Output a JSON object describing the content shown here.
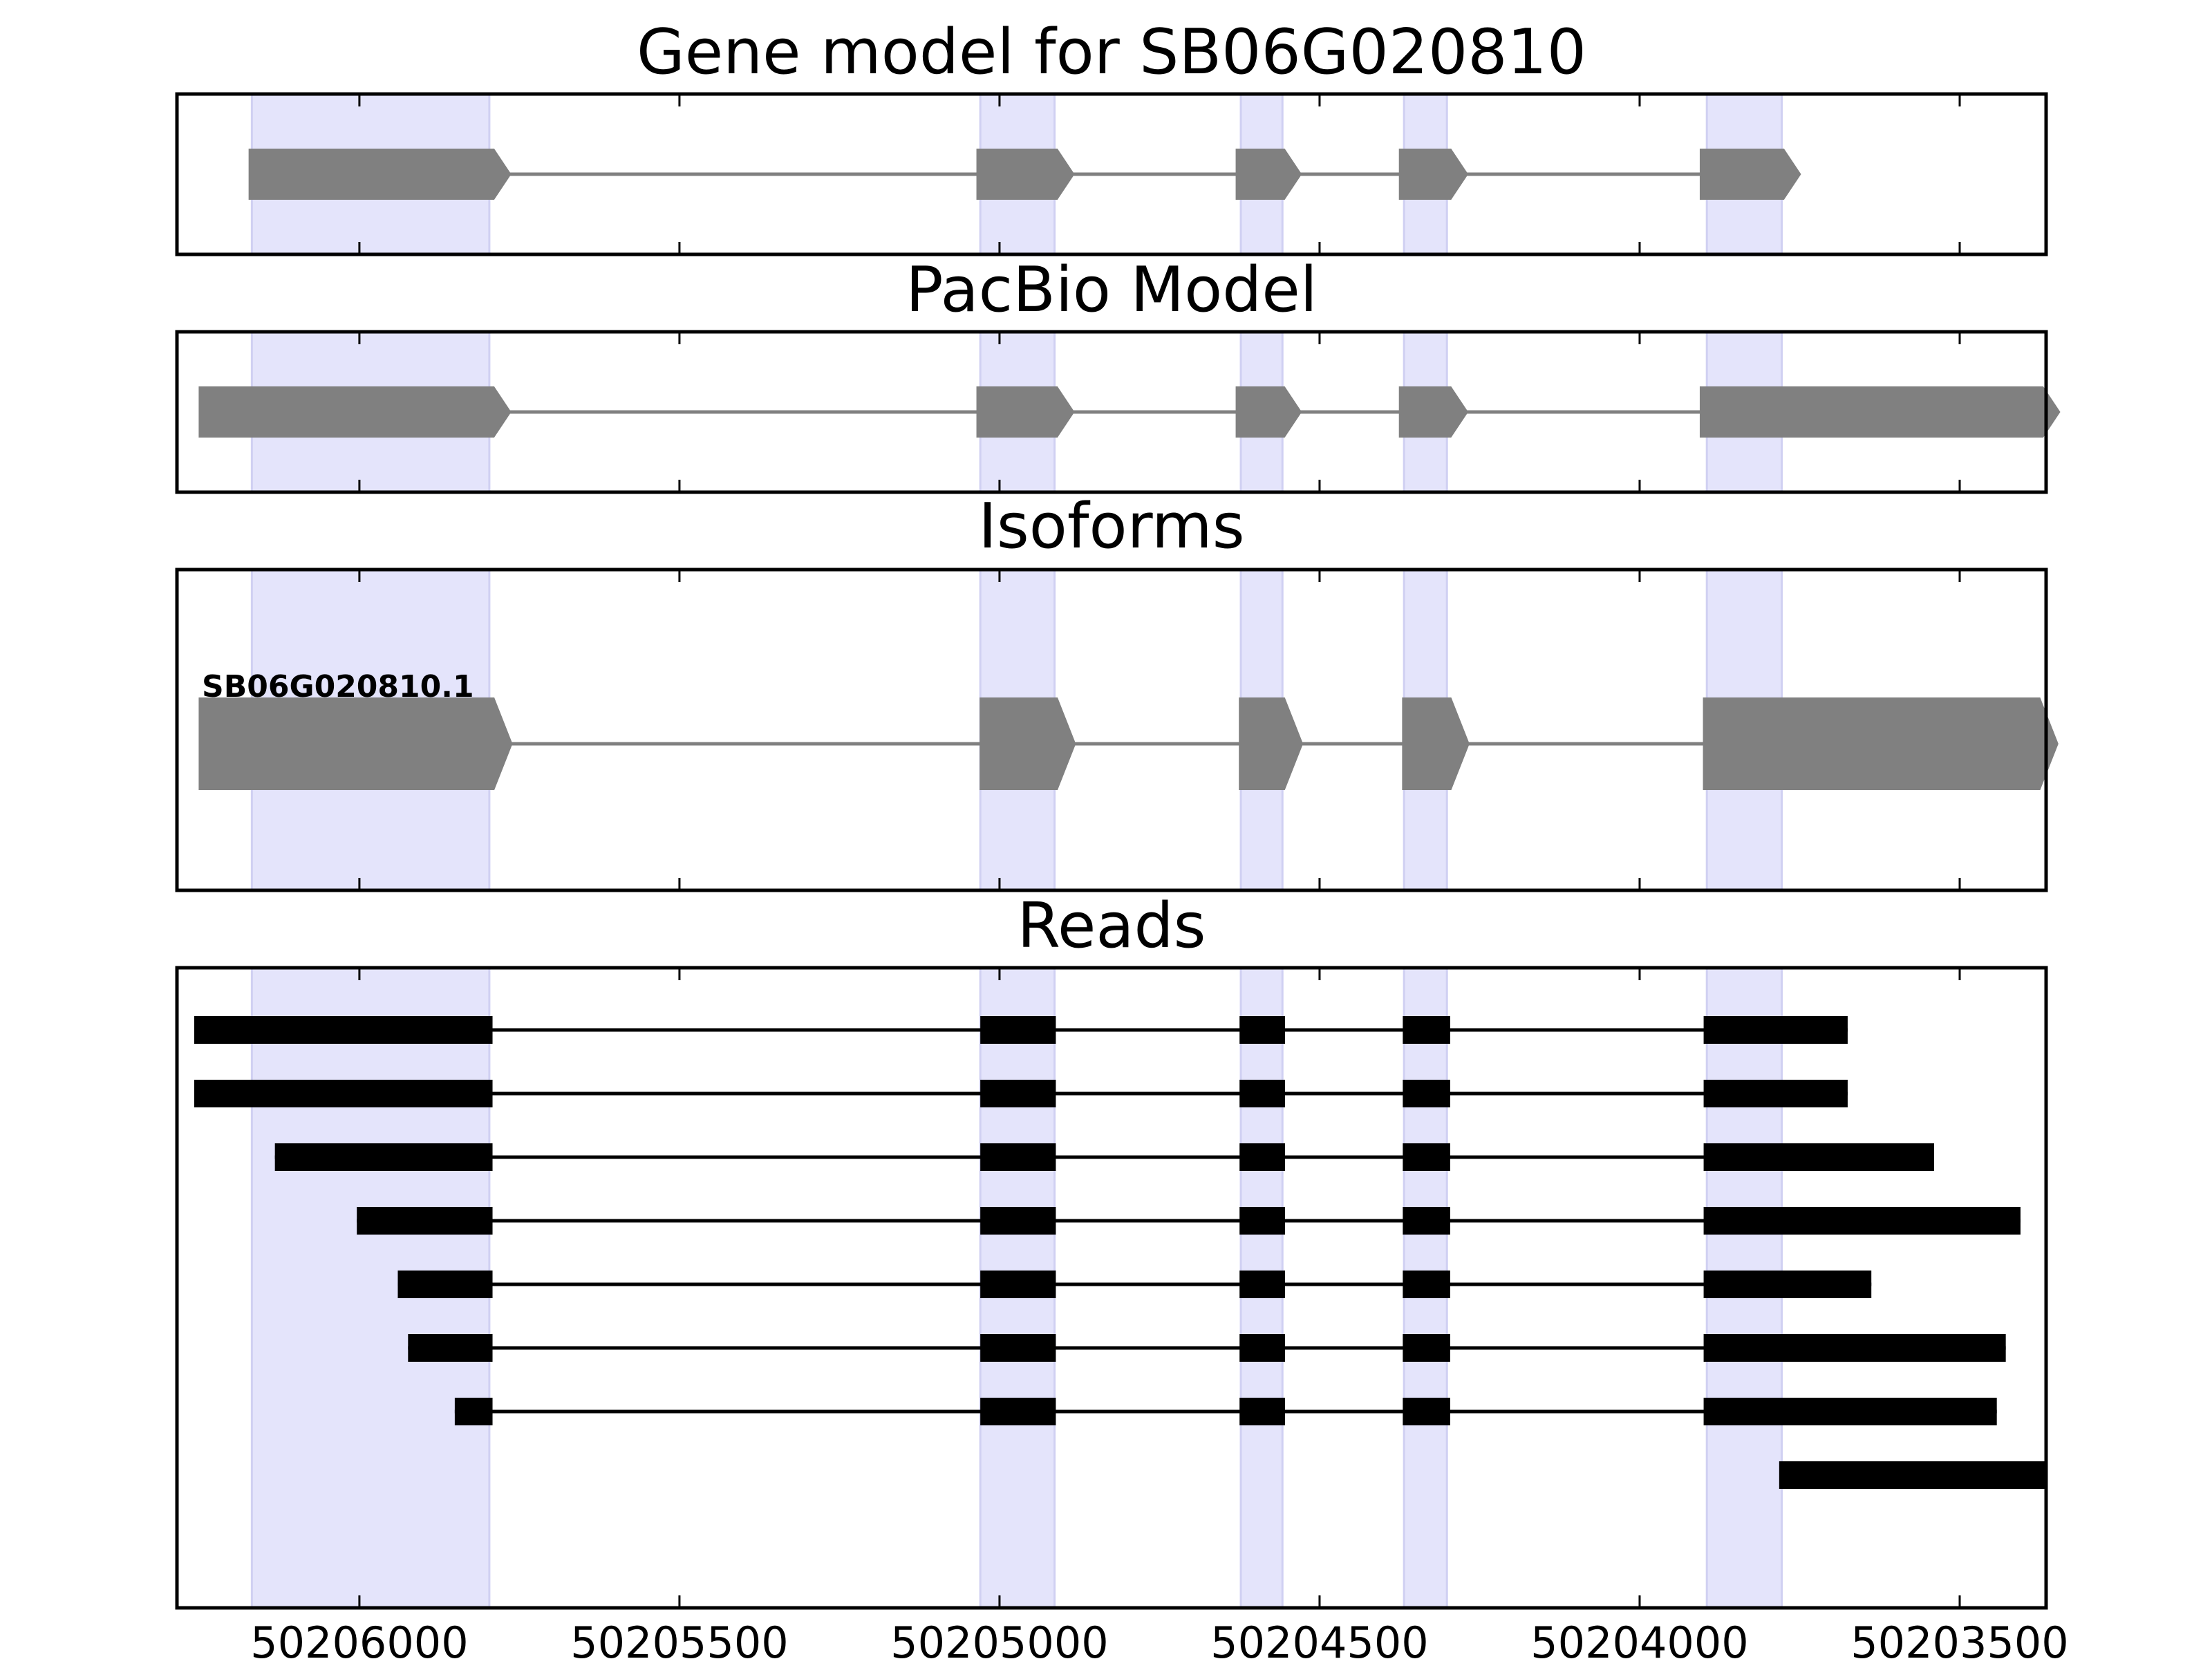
{
  "panels": {
    "gene_model_title": "Gene model for SB06G020810",
    "pacbio_title": "PacBio Model",
    "isoforms_title": "Isoforms",
    "reads_title": "Reads"
  },
  "colors": {
    "exon_highlight": "#e4e4fb",
    "model_feature": "#808080",
    "read_feature": "#000000"
  },
  "x_axis": {
    "domain": [
      50206285,
      50203365
    ],
    "ticks": [
      {
        "value": 50206000,
        "label": "50206000"
      },
      {
        "value": 50205500,
        "label": "50205500"
      },
      {
        "value": 50205000,
        "label": "50205000"
      },
      {
        "value": 50204500,
        "label": "50204500"
      },
      {
        "value": 50204000,
        "label": "50204000"
      },
      {
        "value": 50203500,
        "label": "50203500"
      }
    ]
  },
  "highlight_exons": [
    [
      50206168,
      50205797
    ],
    [
      50205030,
      50204914
    ],
    [
      50204623,
      50204558
    ],
    [
      50204368,
      50204301
    ],
    [
      50203895,
      50203778
    ]
  ],
  "gene_model_exons": [
    [
      50206172,
      50205790
    ],
    [
      50205035,
      50204910
    ],
    [
      50204630,
      50204555
    ],
    [
      50204375,
      50204295
    ],
    [
      50203905,
      50203775
    ]
  ],
  "pacbio_exons": [
    [
      50206250,
      50205790
    ],
    [
      50205035,
      50204910
    ],
    [
      50204630,
      50204555
    ],
    [
      50204375,
      50204295
    ],
    [
      50203905,
      50203370
    ]
  ],
  "isoforms": [
    {
      "name": "SB06G020810.1",
      "exons": [
        [
          50206250,
          50205790
        ],
        [
          50205030,
          50204910
        ],
        [
          50204625,
          50204555
        ],
        [
          50204370,
          50204295
        ],
        [
          50203900,
          50203375
        ]
      ]
    }
  ],
  "reads": [
    {
      "exons": [
        [
          50206258,
          50205792
        ],
        [
          50205030,
          50204912
        ],
        [
          50204625,
          50204554
        ],
        [
          50204370,
          50204296
        ],
        [
          50203900,
          50203675
        ]
      ]
    },
    {
      "exons": [
        [
          50206258,
          50205792
        ],
        [
          50205030,
          50204912
        ],
        [
          50204625,
          50204554
        ],
        [
          50204370,
          50204296
        ],
        [
          50203900,
          50203675
        ]
      ]
    },
    {
      "exons": [
        [
          50206132,
          50205792
        ],
        [
          50205030,
          50204912
        ],
        [
          50204625,
          50204554
        ],
        [
          50204370,
          50204296
        ],
        [
          50203900,
          50203540
        ]
      ]
    },
    {
      "exons": [
        [
          50206004,
          50205792
        ],
        [
          50205030,
          50204912
        ],
        [
          50204625,
          50204554
        ],
        [
          50204370,
          50204296
        ],
        [
          50203900,
          50203405
        ]
      ]
    },
    {
      "exons": [
        [
          50205940,
          50205792
        ],
        [
          50205030,
          50204912
        ],
        [
          50204625,
          50204554
        ],
        [
          50204370,
          50204296
        ],
        [
          50203900,
          50203638
        ]
      ]
    },
    {
      "exons": [
        [
          50205924,
          50205792
        ],
        [
          50205030,
          50204912
        ],
        [
          50204625,
          50204554
        ],
        [
          50204370,
          50204296
        ],
        [
          50203900,
          50203428
        ]
      ]
    },
    {
      "exons": [
        [
          50205851,
          50205792
        ],
        [
          50205030,
          50204912
        ],
        [
          50204625,
          50204554
        ],
        [
          50204370,
          50204296
        ],
        [
          50203900,
          50203442
        ]
      ]
    },
    {
      "exons": [
        [
          50203782,
          50203365
        ]
      ]
    }
  ]
}
